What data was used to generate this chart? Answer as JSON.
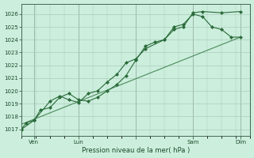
{
  "title": "",
  "xlabel": "Pression niveau de la mer( hPa )",
  "bg_color": "#cceedd",
  "grid_color": "#aaccbb",
  "line_color_main": "#2a6b3a",
  "line_color_trend": "#4a8a5a",
  "ylim": [
    1016.5,
    1026.8
  ],
  "yticks": [
    1017,
    1018,
    1019,
    1020,
    1021,
    1022,
    1023,
    1024,
    1025,
    1026
  ],
  "xlim": [
    0.0,
    4.0
  ],
  "xtick_positions": [
    0.22,
    1.0,
    2.0,
    3.0,
    3.83
  ],
  "xtick_labels": [
    "Ven",
    "Lun",
    "",
    "Sam",
    "Dim"
  ],
  "vline_positions": [
    0.22,
    1.0,
    2.0,
    3.0,
    3.83
  ],
  "vline_color": "#667777",
  "series1_x": [
    0.0,
    0.08,
    0.22,
    0.33,
    0.5,
    0.67,
    0.83,
    1.0,
    1.17,
    1.33,
    1.5,
    1.67,
    1.83,
    2.0,
    2.17,
    2.33,
    2.5,
    2.67,
    2.83,
    3.0,
    3.17,
    3.5,
    3.83
  ],
  "series1_y": [
    1017.0,
    1017.5,
    1017.7,
    1018.5,
    1018.7,
    1019.5,
    1019.8,
    1019.3,
    1019.2,
    1019.5,
    1020.0,
    1020.5,
    1021.2,
    1022.4,
    1023.5,
    1023.8,
    1024.0,
    1024.8,
    1025.0,
    1026.1,
    1026.2,
    1026.1,
    1026.2
  ],
  "series2_x": [
    0.0,
    0.22,
    0.5,
    0.67,
    0.83,
    1.0,
    1.17,
    1.33,
    1.5,
    1.67,
    1.83,
    2.0,
    2.17,
    2.5,
    2.67,
    2.83,
    3.0,
    3.17,
    3.33,
    3.5,
    3.67,
    3.83
  ],
  "series2_y": [
    1017.0,
    1017.7,
    1019.2,
    1019.6,
    1019.3,
    1019.1,
    1019.8,
    1020.0,
    1020.7,
    1021.3,
    1022.2,
    1022.5,
    1023.3,
    1024.0,
    1025.0,
    1025.2,
    1026.0,
    1025.8,
    1025.0,
    1024.8,
    1024.2,
    1024.2
  ],
  "trend_x": [
    0.0,
    3.83
  ],
  "trend_y": [
    1017.4,
    1024.2
  ]
}
